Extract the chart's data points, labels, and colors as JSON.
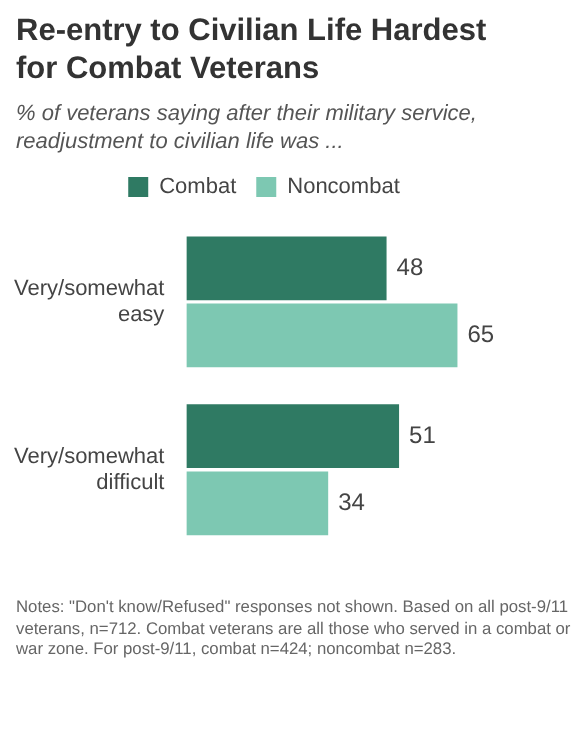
{
  "chart_data": {
    "type": "bar",
    "orientation": "horizontal",
    "title": "Re-entry to Civilian Life Hardest for Combat Veterans",
    "subtitle": "% of veterans saying after their military service, readjustment to civilian life was ...",
    "categories": [
      "Very/somewhat easy",
      "Very/somewhat difficult"
    ],
    "series": [
      {
        "name": "Combat",
        "color": "#2f7a63",
        "values": [
          48,
          51
        ]
      },
      {
        "name": "Noncombat",
        "color": "#7dc8b2",
        "values": [
          65,
          34
        ]
      }
    ],
    "data_labels": true,
    "legend": "top",
    "annotations": [
      "Notes: \"Don't know/Refused\" responses not shown. Based on all post-9/11 veterans, n=712. Combat veterans are all those who served in a combat or war zone. For post-9/11, combat n=424; noncombat n=283."
    ]
  }
}
